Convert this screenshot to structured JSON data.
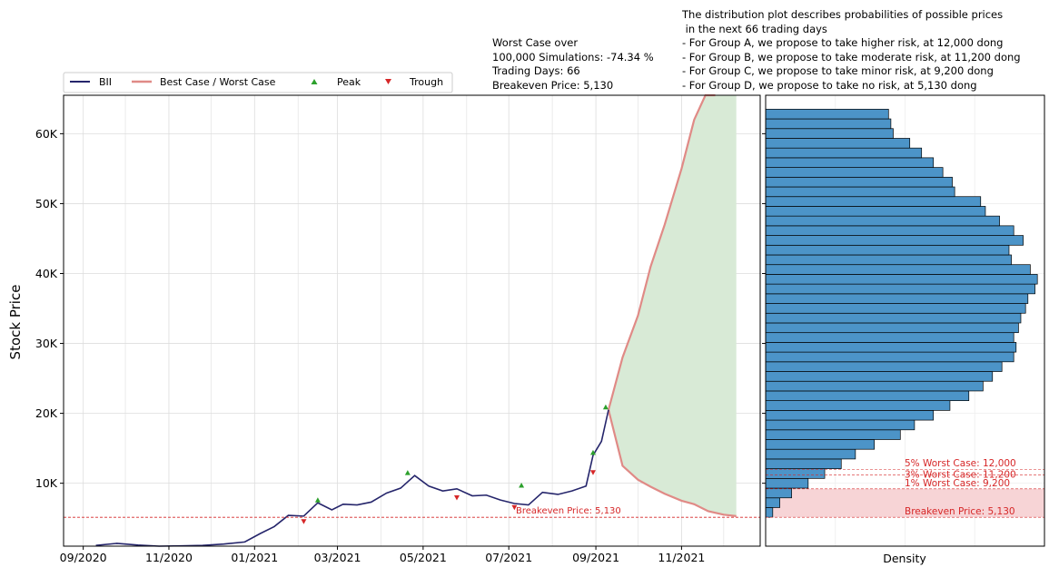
{
  "chart_data": [
    {
      "type": "line",
      "ylabel": "Stock Price",
      "xlabel": "",
      "ylim": [
        1000,
        65500
      ],
      "x_tick_labels": [
        "09/2020",
        "11/2020",
        "01/2021",
        "03/2021",
        "05/2021",
        "07/2021",
        "09/2021",
        "11/2021"
      ],
      "y_tick_labels": [
        "10K",
        "20K",
        "30K",
        "40K",
        "50K",
        "60K"
      ],
      "y_ticks": [
        10000,
        20000,
        30000,
        40000,
        50000,
        60000
      ],
      "grid": true,
      "legend": {
        "placement": "top-left",
        "entries": [
          "BII",
          "Best Case / Worst Case",
          "Peak",
          "Trough"
        ]
      },
      "colors": {
        "price": "#25256b",
        "bounds": "#e08a86",
        "fill": "#d8ead6",
        "peak": "#2ca02c",
        "trough": "#d62728",
        "breakeven": "#d62728"
      },
      "series": [
        {
          "name": "BII",
          "x": [
            "2020-09-10",
            "2020-09-25",
            "2020-10-10",
            "2020-10-25",
            "2020-11-10",
            "2020-11-25",
            "2020-12-10",
            "2020-12-25",
            "2021-01-05",
            "2021-01-15",
            "2021-01-25",
            "2021-02-05",
            "2021-02-15",
            "2021-02-25",
            "2021-03-05",
            "2021-03-15",
            "2021-03-25",
            "2021-04-05",
            "2021-04-15",
            "2021-04-25",
            "2021-05-05",
            "2021-05-15",
            "2021-05-25",
            "2021-06-05",
            "2021-06-15",
            "2021-06-25",
            "2021-07-05",
            "2021-07-15",
            "2021-07-25",
            "2021-08-05",
            "2021-08-15",
            "2021-08-25",
            "2021-08-30",
            "2021-09-05",
            "2021-09-10"
          ],
          "values": [
            1100,
            1400,
            1150,
            1000,
            1050,
            1100,
            1300,
            1600,
            2800,
            3800,
            5400,
            5300,
            7200,
            6200,
            7000,
            6900,
            7300,
            8600,
            9300,
            11100,
            9600,
            8900,
            9200,
            8200,
            8300,
            7600,
            7100,
            6900,
            8700,
            8400,
            8900,
            9600,
            14000,
            16000,
            20500
          ]
        },
        {
          "name": "Best Case",
          "x": [
            "2021-09-10",
            "2021-09-20",
            "2021-10-01",
            "2021-10-10",
            "2021-10-20",
            "2021-11-01",
            "2021-11-10",
            "2021-11-18",
            "2021-11-25"
          ],
          "values": [
            20500,
            28000,
            34000,
            41000,
            47000,
            55000,
            62000,
            66000,
            66000
          ]
        },
        {
          "name": "Worst Case",
          "x": [
            "2021-09-10",
            "2021-09-20",
            "2021-10-01",
            "2021-10-10",
            "2021-10-20",
            "2021-11-01",
            "2021-11-10",
            "2021-11-20",
            "2021-12-01",
            "2021-12-10"
          ],
          "values": [
            20500,
            12500,
            10500,
            9500,
            8500,
            7500,
            7000,
            6000,
            5500,
            5300
          ]
        }
      ],
      "peaks": [
        {
          "x": "2021-02-15",
          "y": 7200
        },
        {
          "x": "2021-04-20",
          "y": 11100
        },
        {
          "x": "2021-07-10",
          "y": 9300
        },
        {
          "x": "2021-08-30",
          "y": 14000
        },
        {
          "x": "2021-09-08",
          "y": 20500
        }
      ],
      "troughs": [
        {
          "x": "2021-02-05",
          "y": 4800
        },
        {
          "x": "2021-05-25",
          "y": 8200
        },
        {
          "x": "2021-07-05",
          "y": 6800
        },
        {
          "x": "2021-08-30",
          "y": 11800
        }
      ],
      "breakeven": {
        "value": 5130,
        "label": "Breakeven Price: 5,130"
      }
    },
    {
      "type": "bar",
      "orientation": "horizontal",
      "xlabel": "Density",
      "ylim": [
        1000,
        65500
      ],
      "bin_edges": [
        5130,
        6520,
        7910,
        9300,
        10690,
        12080,
        13470,
        14860,
        16250,
        17640,
        19030,
        20420,
        21810,
        23200,
        24590,
        25980,
        27370,
        28760,
        30150,
        31540,
        32930,
        34320,
        35710,
        37100,
        38490,
        39880,
        41270,
        42660,
        44050,
        45440,
        46830,
        48220,
        49610,
        51000,
        52390,
        53780,
        55170,
        56560,
        57950,
        59340,
        60730,
        62120,
        63510
      ],
      "density": [
        0.3,
        0.6,
        1.1,
        1.8,
        2.5,
        3.2,
        3.8,
        4.6,
        5.7,
        6.3,
        7.1,
        7.8,
        8.6,
        9.2,
        9.6,
        10.0,
        10.5,
        10.6,
        10.5,
        10.7,
        10.8,
        11.0,
        11.1,
        11.4,
        11.5,
        11.2,
        10.4,
        10.3,
        10.9,
        10.5,
        9.9,
        9.3,
        9.1,
        8.0,
        7.9,
        7.5,
        7.1,
        6.6,
        6.1,
        5.4,
        5.3,
        5.2,
        5.0
      ],
      "color": "#4c94c8",
      "thresholds": [
        {
          "label": "5% Worst Case: 12,000",
          "value": 12000
        },
        {
          "label": "3% Worst Case: 11,200",
          "value": 11200
        },
        {
          "label": "1% Worst Case: 9,200",
          "value": 9200
        },
        {
          "label": "Breakeven Price: 5,130",
          "value": 5130
        }
      ]
    }
  ],
  "annotations": {
    "worst_case": "Worst Case over\n100,000 Simulations: -74.34 %\nTrading Days: 66\nBreakeven Price: 5,130",
    "distribution": "The distribution plot describes probabilities of possible prices\n in the next 66 trading days\n- For Group A, we propose to take higher risk, at 12,000 dong\n- For Group B, we propose to take moderate risk, at 11,200 dong\n- For Group C, we propose to take minor risk, at 9,200 dong\n- For Group D, we propose to take no risk, at 5,130 dong"
  }
}
